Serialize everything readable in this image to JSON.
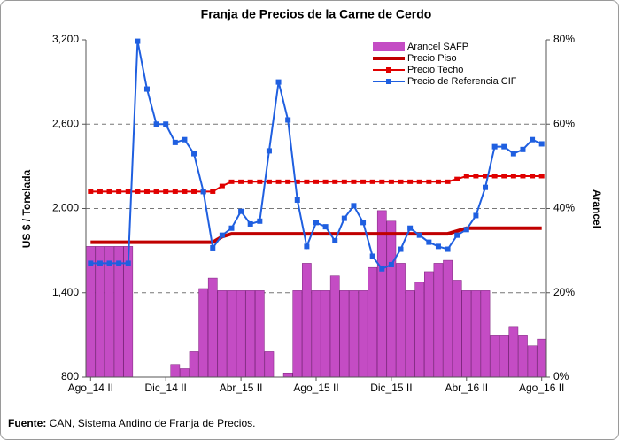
{
  "chart_data": {
    "type": "combo",
    "title": "Franja de Precios de la Carne de Cerdo",
    "y_label": "US $ / Tonelada",
    "y2_label": "Arancel",
    "source_label": "Fuente:",
    "source": "CAN, Sistema Andino de Franja de Precios.",
    "categories": [
      "Ago_14 II",
      null,
      null,
      null,
      null,
      null,
      null,
      null,
      "Dic_14 II",
      null,
      null,
      null,
      null,
      null,
      null,
      null,
      "Abr_15 II",
      null,
      null,
      null,
      null,
      null,
      null,
      null,
      "Ago_15 II",
      null,
      null,
      null,
      null,
      null,
      null,
      null,
      "Dic_15 II",
      null,
      null,
      null,
      null,
      null,
      null,
      null,
      "Abr_16 II",
      null,
      null,
      null,
      null,
      null,
      null,
      null,
      "Ago_16 II"
    ],
    "ylim": [
      800,
      3200
    ],
    "yticks": [
      800,
      {
        "value": 1400,
        "label": "1,400"
      },
      {
        "value": 2000,
        "label": "2,000"
      },
      {
        "value": 2600,
        "label": "2,600"
      },
      {
        "value": 3200,
        "label": "3,200"
      }
    ],
    "y2lim": [
      0,
      80
    ],
    "y2ticks": [
      {
        "value": 0,
        "label": "0%"
      },
      {
        "value": 20,
        "label": "20%"
      },
      {
        "value": 40,
        "label": "40%"
      },
      {
        "value": 60,
        "label": "60%"
      },
      {
        "value": 80,
        "label": "80%"
      }
    ],
    "grid": true,
    "series": [
      {
        "name": "Arancel SAFP",
        "type": "bar",
        "axis": "y2",
        "color": "#c44cc4",
        "values": [
          31,
          31,
          31,
          31,
          31,
          0,
          0,
          0,
          0,
          3,
          2,
          6,
          21,
          23.5,
          20.5,
          20.5,
          20.5,
          20.5,
          20.5,
          6,
          0,
          1,
          20.5,
          27,
          20.5,
          20.5,
          24,
          20.5,
          20.5,
          20.5,
          26,
          39.5,
          37,
          27,
          20.5,
          22.5,
          25,
          27,
          27.7,
          23,
          20.5,
          20.5,
          20.5,
          10,
          10,
          12,
          10,
          7.4,
          9
        ]
      },
      {
        "name": "Precio Piso",
        "type": "line",
        "color": "#c00000",
        "values": [
          1760,
          1760,
          1760,
          1760,
          1760,
          1760,
          1760,
          1760,
          1760,
          1760,
          1760,
          1760,
          1760,
          1760,
          1800,
          1820,
          1820,
          1820,
          1820,
          1820,
          1820,
          1820,
          1820,
          1820,
          1820,
          1820,
          1820,
          1820,
          1820,
          1820,
          1820,
          1820,
          1820,
          1820,
          1820,
          1820,
          1820,
          1820,
          1820,
          1840,
          1860,
          1860,
          1860,
          1860,
          1860,
          1860,
          1860,
          1860,
          1860
        ]
      },
      {
        "name": "Precio Techo",
        "type": "line",
        "color": "#e00000",
        "marker": "dash",
        "values": [
          2120,
          2120,
          2120,
          2120,
          2120,
          2120,
          2120,
          2120,
          2120,
          2120,
          2120,
          2120,
          2120,
          2120,
          2160,
          2190,
          2190,
          2190,
          2190,
          2190,
          2190,
          2190,
          2190,
          2190,
          2190,
          2190,
          2190,
          2190,
          2190,
          2190,
          2190,
          2190,
          2190,
          2190,
          2190,
          2190,
          2190,
          2190,
          2190,
          2210,
          2230,
          2230,
          2230,
          2230,
          2230,
          2230,
          2230,
          2230,
          2230
        ]
      },
      {
        "name": "Precio de Referencia CIF",
        "type": "line",
        "color": "#1f5fe0",
        "marker": "square",
        "values": [
          1610,
          1610,
          1610,
          1610,
          1610,
          3190,
          2850,
          2600,
          2600,
          2470,
          2490,
          2390,
          2120,
          1720,
          1810,
          1860,
          1980,
          1890,
          1910,
          2410,
          2900,
          2630,
          2060,
          1730,
          1900,
          1870,
          1770,
          1930,
          2020,
          1900,
          1660,
          1570,
          1600,
          1710,
          1860,
          1810,
          1760,
          1730,
          1710,
          1810,
          1850,
          1950,
          2150,
          2440,
          2440,
          2390,
          2420,
          2490,
          2460
        ]
      }
    ]
  }
}
